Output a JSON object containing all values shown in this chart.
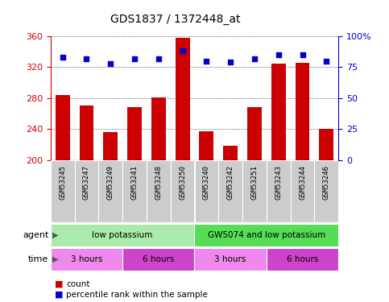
{
  "title": "GDS1837 / 1372448_at",
  "samples": [
    "GSM53245",
    "GSM53247",
    "GSM53249",
    "GSM53241",
    "GSM53248",
    "GSM53250",
    "GSM53240",
    "GSM53242",
    "GSM53251",
    "GSM53243",
    "GSM53244",
    "GSM53246"
  ],
  "counts": [
    284,
    270,
    236,
    268,
    281,
    358,
    237,
    218,
    268,
    325,
    326,
    240
  ],
  "percentiles": [
    83,
    82,
    78,
    82,
    82,
    88,
    80,
    79,
    82,
    85,
    85,
    80
  ],
  "ylim_left": [
    200,
    360
  ],
  "ylim_right": [
    0,
    100
  ],
  "yticks_left": [
    200,
    240,
    280,
    320,
    360
  ],
  "yticks_right": [
    0,
    25,
    50,
    75,
    100
  ],
  "bar_color": "#cc0000",
  "dot_color": "#0000cc",
  "agent_groups": [
    {
      "label": "low potassium",
      "start": 0,
      "end": 6,
      "color": "#aaeaaa"
    },
    {
      "label": "GW5074 and low potassium",
      "start": 6,
      "end": 12,
      "color": "#55dd55"
    }
  ],
  "time_groups": [
    {
      "label": "3 hours",
      "start": 0,
      "end": 3,
      "color": "#ee88ee"
    },
    {
      "label": "6 hours",
      "start": 3,
      "end": 6,
      "color": "#cc44cc"
    },
    {
      "label": "3 hours",
      "start": 6,
      "end": 9,
      "color": "#ee88ee"
    },
    {
      "label": "6 hours",
      "start": 9,
      "end": 12,
      "color": "#cc44cc"
    }
  ],
  "legend_count_color": "#cc0000",
  "legend_dot_color": "#0000cc",
  "left_axis_color": "#cc0000",
  "right_axis_color": "#0000cc",
  "bg_color": "#ffffff",
  "sample_band_color": "#cccccc",
  "sample_band_alt_color": "#bbbbbb"
}
